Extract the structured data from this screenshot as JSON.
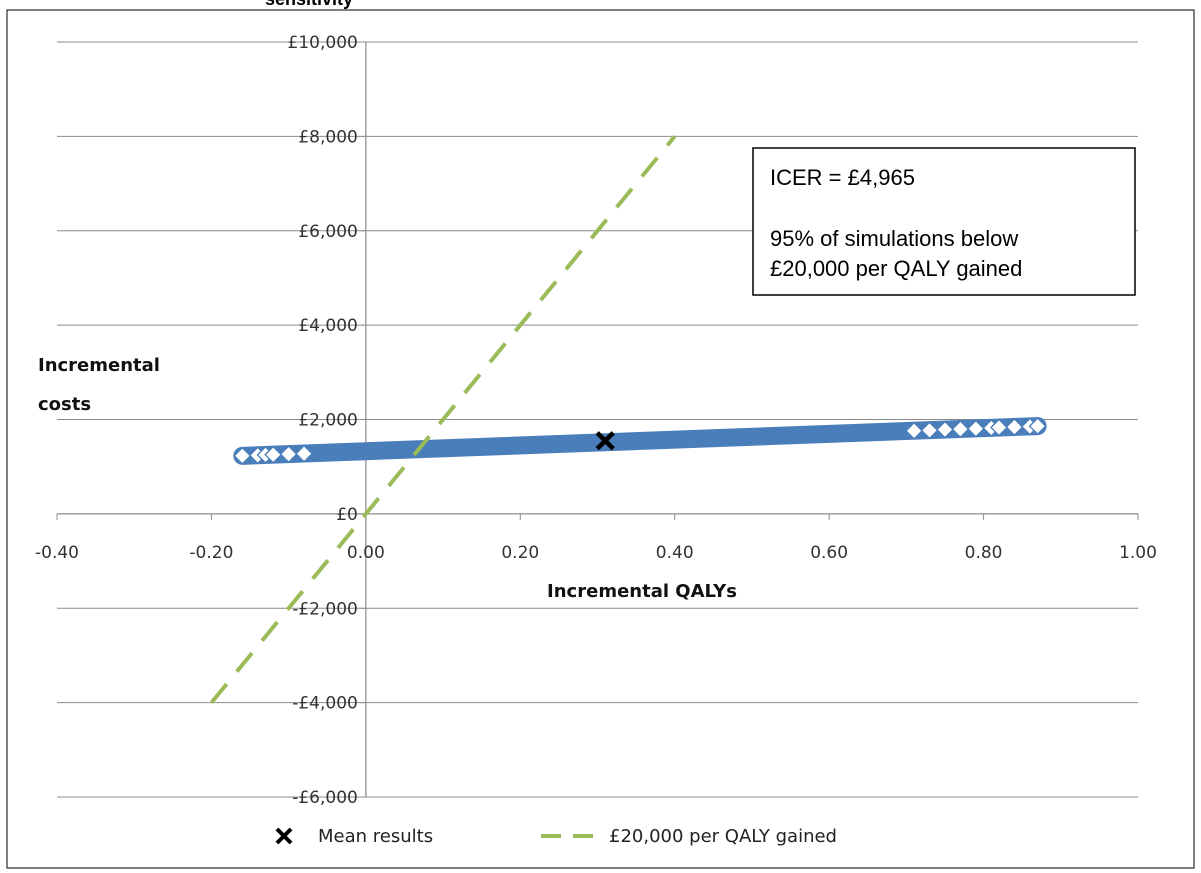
{
  "chart_data": {
    "type": "scatter",
    "title_fragment": "sensitivity",
    "xlabel": "Incremental QALYs",
    "ylabel_lines": [
      "Incremental",
      "costs"
    ],
    "xlim": [
      -0.4,
      1.0
    ],
    "ylim": [
      -6000,
      10000
    ],
    "x_ticks": [
      -0.4,
      -0.2,
      0.0,
      0.2,
      0.4,
      0.6,
      0.8,
      1.0
    ],
    "x_tick_labels": [
      "-0.40",
      "-0.20",
      "0.00",
      "0.20",
      "0.40",
      "0.60",
      "0.80",
      "1.00"
    ],
    "y_ticks": [
      -6000,
      -4000,
      -2000,
      0,
      2000,
      4000,
      6000,
      8000,
      10000
    ],
    "y_tick_labels": [
      "-£6,000",
      "-£4,000",
      "-£2,000",
      "£0",
      "£2,000",
      "£4,000",
      "£6,000",
      "£8,000",
      "£10,000"
    ],
    "grid": "horizontal",
    "legend_position": "bottom",
    "series": [
      {
        "name": "",
        "kind": "scatter",
        "marker": "diamond-open",
        "color": "#4A7EBB",
        "trend": {
          "x_start": -0.16,
          "y_start": 1230,
          "x_end": 0.87,
          "y_end": 1860
        },
        "sample_points": [
          [
            -0.16,
            1230
          ],
          [
            -0.14,
            1240
          ],
          [
            -0.13,
            1250
          ],
          [
            -0.12,
            1255
          ],
          [
            -0.1,
            1265
          ],
          [
            -0.08,
            1275
          ],
          [
            -0.05,
            1300
          ],
          [
            0.0,
            1330
          ],
          [
            0.05,
            1360
          ],
          [
            0.1,
            1390
          ],
          [
            0.15,
            1420
          ],
          [
            0.2,
            1450
          ],
          [
            0.25,
            1480
          ],
          [
            0.3,
            1510
          ],
          [
            0.35,
            1540
          ],
          [
            0.4,
            1570
          ],
          [
            0.45,
            1600
          ],
          [
            0.5,
            1630
          ],
          [
            0.55,
            1660
          ],
          [
            0.6,
            1690
          ],
          [
            0.65,
            1720
          ],
          [
            0.69,
            1745
          ],
          [
            0.71,
            1760
          ],
          [
            0.73,
            1770
          ],
          [
            0.75,
            1785
          ],
          [
            0.77,
            1795
          ],
          [
            0.79,
            1805
          ],
          [
            0.81,
            1820
          ],
          [
            0.82,
            1830
          ],
          [
            0.84,
            1840
          ],
          [
            0.86,
            1850
          ],
          [
            0.87,
            1860
          ]
        ]
      },
      {
        "name": "Mean results",
        "kind": "point",
        "marker": "x",
        "color": "#000000",
        "x": 0.31,
        "y": 1550
      },
      {
        "name": "£20,000 per QALY gained",
        "kind": "line",
        "dash": "dashed",
        "color": "#9BBB59",
        "x": [
          -0.2,
          0.4
        ],
        "y": [
          -4000,
          8000
        ]
      }
    ],
    "annotation": {
      "lines": [
        "ICER = £4,965",
        "95% of simulations below",
        "£20,000 per QALY gained"
      ]
    }
  }
}
